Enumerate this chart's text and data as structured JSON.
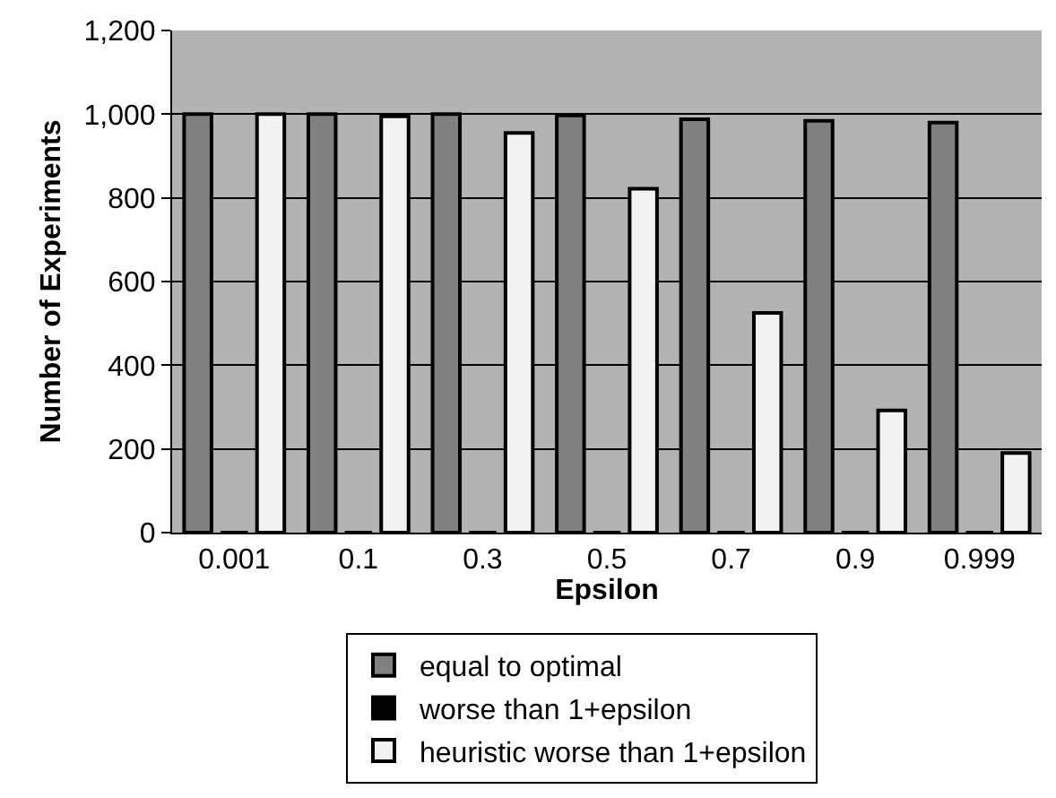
{
  "chart_data": {
    "type": "bar",
    "xlabel": "Epsilon",
    "ylabel": "Number of Experiments",
    "categories": [
      "0.001",
      "0.1",
      "0.3",
      "0.5",
      "0.7",
      "0.9",
      "0.999"
    ],
    "series": [
      {
        "name": "equal to optimal",
        "color": "#808080",
        "values": [
          1000,
          1000,
          1000,
          997,
          988,
          984,
          980
        ]
      },
      {
        "name": "worse than 1+epsilon",
        "color": "#000000",
        "values": [
          0,
          0,
          0,
          0,
          0,
          0,
          0
        ]
      },
      {
        "name": "heuristic worse than 1+epsilon",
        "color": "#f2f2f2",
        "values": [
          1000,
          995,
          955,
          822,
          525,
          292,
          190
        ]
      }
    ],
    "ylim": [
      0,
      1200
    ],
    "yticks": [
      {
        "value": 0,
        "label": "0"
      },
      {
        "value": 200,
        "label": "200"
      },
      {
        "value": 400,
        "label": "400"
      },
      {
        "value": 600,
        "label": "600"
      },
      {
        "value": 800,
        "label": "800"
      },
      {
        "value": 1000,
        "label": "1,000"
      },
      {
        "value": 1200,
        "label": "1,200"
      }
    ],
    "grid": "y",
    "legend": "bottom"
  }
}
